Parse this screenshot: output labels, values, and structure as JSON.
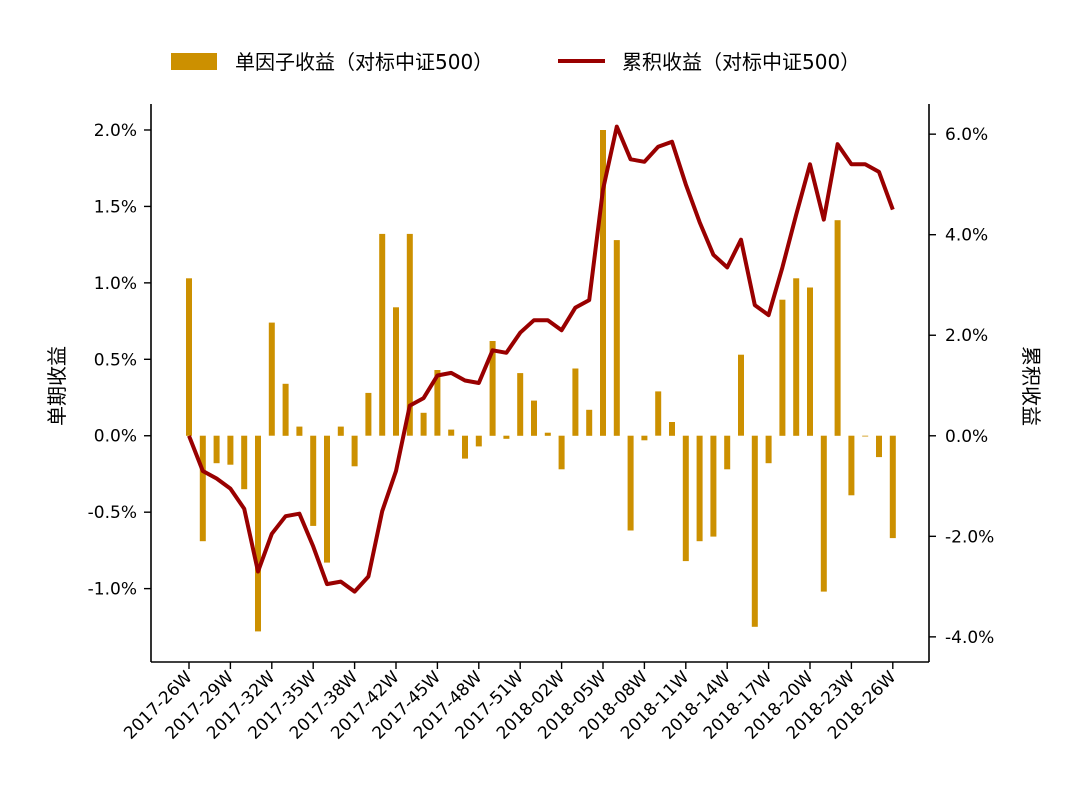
{
  "chart_data": {
    "type": "bar+line",
    "title": "",
    "legend": [
      {
        "label": "单因子收益（对标中证500）",
        "kind": "bar",
        "color": "#CC9000"
      },
      {
        "label": "累积收益（对标中证500）",
        "kind": "line",
        "color": "#990000"
      }
    ],
    "legend_placement": "top-center",
    "ylabel_left": "单期收益",
    "ylabel_right": "累积收益",
    "ylim_left": [
      -1.48,
      2.17
    ],
    "ylim_right": [
      -4.5,
      6.6
    ],
    "yticks_left": [
      "-1.0%",
      "-0.5%",
      "0.0%",
      "0.5%",
      "1.0%",
      "1.5%",
      "2.0%"
    ],
    "yticks_left_values": [
      -1.0,
      -0.5,
      0.0,
      0.5,
      1.0,
      1.5,
      2.0
    ],
    "yticks_right": [
      "-4.0%",
      "-2.0%",
      "0.0%",
      "2.0%",
      "4.0%",
      "6.0%"
    ],
    "yticks_right_values": [
      -4.0,
      -2.0,
      0.0,
      2.0,
      4.0,
      6.0
    ],
    "xticks": [
      "2017-26W",
      "2017-29W",
      "2017-32W",
      "2017-35W",
      "2017-38W",
      "2017-42W",
      "2017-45W",
      "2017-48W",
      "2017-51W",
      "2018-02W",
      "2018-05W",
      "2018-08W",
      "2018-11W",
      "2018-14W",
      "2018-17W",
      "2018-20W",
      "2018-23W",
      "2018-26W"
    ],
    "xtick_index": [
      0,
      3,
      6,
      9,
      12,
      15,
      18,
      21,
      24,
      27,
      30,
      33,
      36,
      39,
      42,
      45,
      48,
      51
    ],
    "periods": 52,
    "series": [
      {
        "name": "单因子收益（对标中证500）",
        "type": "bar",
        "axis": "left",
        "color": "#CC9000",
        "values": [
          1.03,
          -0.69,
          -0.18,
          -0.19,
          -0.35,
          -1.28,
          0.74,
          0.34,
          0.06,
          -0.59,
          -0.83,
          0.06,
          -0.2,
          0.28,
          1.32,
          0.84,
          1.32,
          0.15,
          0.43,
          0.04,
          -0.15,
          -0.07,
          0.62,
          -0.02,
          0.41,
          0.23,
          0.02,
          -0.22,
          0.44,
          0.17,
          2.0,
          1.28,
          -0.62,
          -0.03,
          0.29,
          0.09,
          -0.82,
          -0.69,
          -0.66,
          -0.22,
          0.53,
          -1.25,
          -0.18,
          0.89,
          1.03,
          0.97,
          -1.02,
          1.41,
          -0.39,
          0.0,
          -0.14,
          -0.67
        ]
      },
      {
        "name": "累积收益（对标中证500）",
        "type": "line",
        "axis": "right",
        "color": "#990000",
        "values": [
          0.0,
          -0.7,
          -0.85,
          -1.05,
          -1.45,
          -2.7,
          -1.95,
          -1.6,
          -1.55,
          -2.2,
          -2.95,
          -2.9,
          -3.1,
          -2.8,
          -1.5,
          -0.7,
          0.6,
          0.75,
          1.2,
          1.25,
          1.1,
          1.05,
          1.7,
          1.65,
          2.05,
          2.3,
          2.3,
          2.1,
          2.55,
          2.7,
          4.9,
          6.15,
          5.5,
          5.45,
          5.75,
          5.85,
          5.0,
          4.25,
          3.6,
          3.35,
          3.9,
          2.6,
          2.4,
          3.35,
          4.4,
          5.4,
          4.3,
          5.8,
          5.4,
          5.4,
          5.25,
          4.5
        ]
      }
    ]
  }
}
